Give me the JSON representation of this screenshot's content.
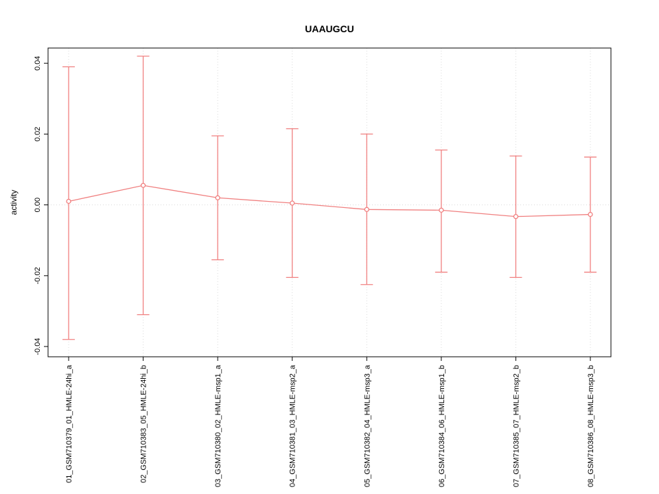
{
  "chart_data": {
    "type": "line",
    "title": "UAAUGCU",
    "ylabel": "activity",
    "xlabel": "",
    "legend": "none",
    "grid": "dotted vertical gridlines at each category plus dotted horizontal line at y=0",
    "ylim": [
      -0.0429,
      0.0443
    ],
    "yticks": [
      -0.04,
      -0.02,
      0,
      0.02,
      0.04
    ],
    "ytick_labels": [
      "-0.04",
      "-0.02",
      "0.00",
      "0.02",
      "0.04"
    ],
    "categories": [
      "01_GSM710379_01_HMLE-24hi_a",
      "02_GSM710383_05_HMLE-24hi_b",
      "03_GSM710380_02_HMLE-msp1_a",
      "04_GSM710381_03_HMLE-msp2_a",
      "05_GSM710382_04_HMLE-msp3_a",
      "06_GSM710384_06_HMLE-msp1_b",
      "07_GSM710385_07_HMLE-msp2_b",
      "08_GSM710386_08_HMLE-msp3_b"
    ],
    "series": [
      {
        "name": "mean",
        "values": [
          0.001,
          0.0055,
          0.002,
          0.0005,
          -0.0013,
          -0.0015,
          -0.0033,
          -0.0027
        ]
      },
      {
        "name": "upper",
        "values": [
          0.039,
          0.042,
          0.0195,
          0.0215,
          0.02,
          0.0155,
          0.0138,
          0.0135
        ]
      },
      {
        "name": "lower",
        "values": [
          -0.038,
          -0.031,
          -0.0155,
          -0.0205,
          -0.0225,
          -0.019,
          -0.0205,
          -0.019
        ]
      }
    ],
    "colors": {
      "accent": "#f08080",
      "grid": "#d9d9d9",
      "axis": "#000000",
      "point_fill": "#ffffff"
    }
  }
}
